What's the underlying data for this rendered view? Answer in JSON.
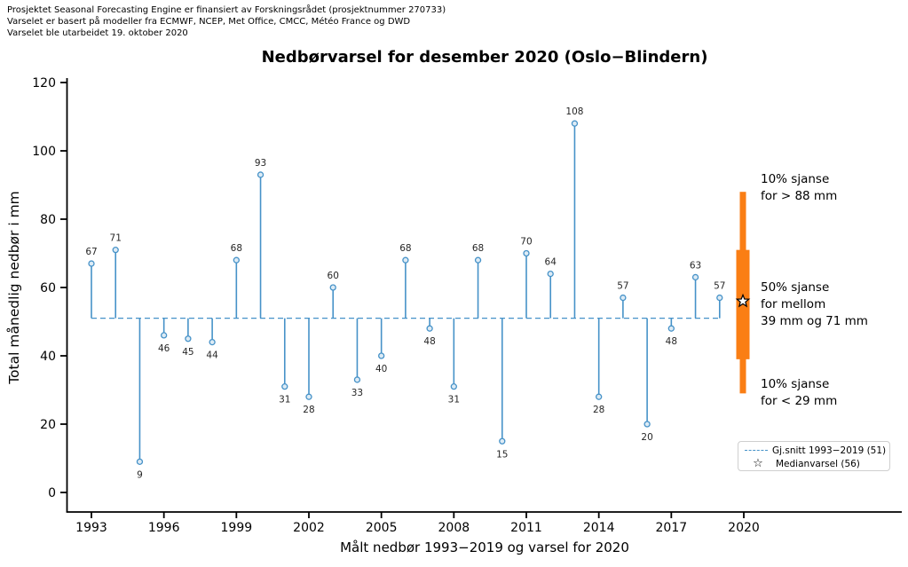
{
  "header": {
    "lines": [
      "Prosjektet Seasonal Forecasting Engine er finansiert av Forskningsrådet (prosjektnummer 270733)",
      "Varselet er basert på modeller fra ECMWF, NCEP, Met Office, CMCC, Météo France og DWD",
      "Varselet ble utarbeidet 19. oktober 2020"
    ]
  },
  "chart_data": {
    "type": "stem",
    "title": "Nedbørvarsel for desember 2020 (Oslo−Blindern)",
    "xlabel": "Målt nedbør 1993−2019 og varsel for 2020",
    "ylabel": "Total månedlig nedbør i mm",
    "ylim": [
      0,
      120
    ],
    "yticks": [
      0,
      20,
      40,
      60,
      80,
      100,
      120
    ],
    "xticks": [
      1993,
      1996,
      1999,
      2002,
      2005,
      2008,
      2011,
      2014,
      2017,
      2020
    ],
    "grid": false,
    "baseline": {
      "value": 51,
      "label": "Gj.snitt 1993−2019 (51)"
    },
    "years": [
      1993,
      1994,
      1995,
      1996,
      1997,
      1998,
      1999,
      2000,
      2001,
      2002,
      2003,
      2004,
      2005,
      2006,
      2007,
      2008,
      2009,
      2010,
      2011,
      2012,
      2013,
      2014,
      2015,
      2016,
      2017,
      2018,
      2019
    ],
    "values": [
      67,
      71,
      9,
      46,
      45,
      44,
      68,
      93,
      31,
      28,
      60,
      33,
      40,
      68,
      48,
      31,
      68,
      15,
      70,
      64,
      108,
      28,
      57,
      20,
      48,
      63,
      57
    ],
    "forecast": {
      "year": 2020,
      "median": 56,
      "central_50": [
        39,
        71
      ],
      "p10": 29,
      "p90": 88
    },
    "annotations": [
      {
        "lines": [
          "10% sjanse",
          "for > 88 mm"
        ]
      },
      {
        "lines": [
          "50% sjanse",
          "for mellom",
          "39 mm og 71 mm"
        ]
      },
      {
        "lines": [
          "10% sjanse",
          "for < 29 mm"
        ]
      }
    ],
    "legend": [
      {
        "icon": "dashed-line",
        "label": "Gj.snitt 1993−2019 (51)"
      },
      {
        "icon": "star",
        "label": "Medianvarsel (56)"
      }
    ],
    "colors": {
      "stem": "#4692c8",
      "marker_face": "#ddebf5",
      "forecast": "#fa7e14",
      "value_label": "#262626",
      "axis": "#000000"
    }
  }
}
